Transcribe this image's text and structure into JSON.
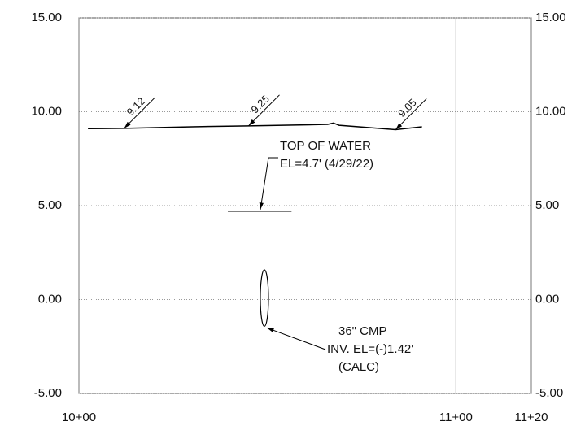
{
  "chart_data": {
    "type": "line",
    "xlim": [
      1000,
      1120
    ],
    "xticks": [
      {
        "value": 1000,
        "label": "10+00"
      },
      {
        "value": 1100,
        "label": "11+00"
      },
      {
        "value": 1120,
        "label": "11+20"
      }
    ],
    "ylim": [
      -5,
      15
    ],
    "yticks": [
      {
        "value": -5,
        "label": "-5.00"
      },
      {
        "value": 0,
        "label": "0.00"
      },
      {
        "value": 5,
        "label": "5.00"
      },
      {
        "value": 10,
        "label": "10.00"
      },
      {
        "value": 15,
        "label": "15.00"
      }
    ],
    "grid": true,
    "series": [
      {
        "color": "#000000",
        "x": [
          1002.4,
          1012,
          1030,
          1045,
          1060,
          1066,
          1067.5,
          1069,
          1084,
          1091
        ],
        "values": [
          9.1,
          9.12,
          9.2,
          9.25,
          9.3,
          9.33,
          9.4,
          9.28,
          9.05,
          9.2
        ]
      }
    ],
    "spot_labels": [
      {
        "x": 1012,
        "value": 9.12
      },
      {
        "x": 1045,
        "value": 9.25
      },
      {
        "x": 1084,
        "value": 9.05
      }
    ],
    "water": {
      "x": [
        1039.5,
        1056.4
      ],
      "value": 4.7,
      "labels": [
        "TOP OF WATER",
        "EL=4.7' (4/29/22)"
      ]
    },
    "pipe": {
      "x": 1049.2,
      "invert": -1.42,
      "diameter": 3,
      "labels": [
        "36\" CMP",
        "INV. EL=(-)1.42'",
        "(CALC)"
      ]
    }
  }
}
